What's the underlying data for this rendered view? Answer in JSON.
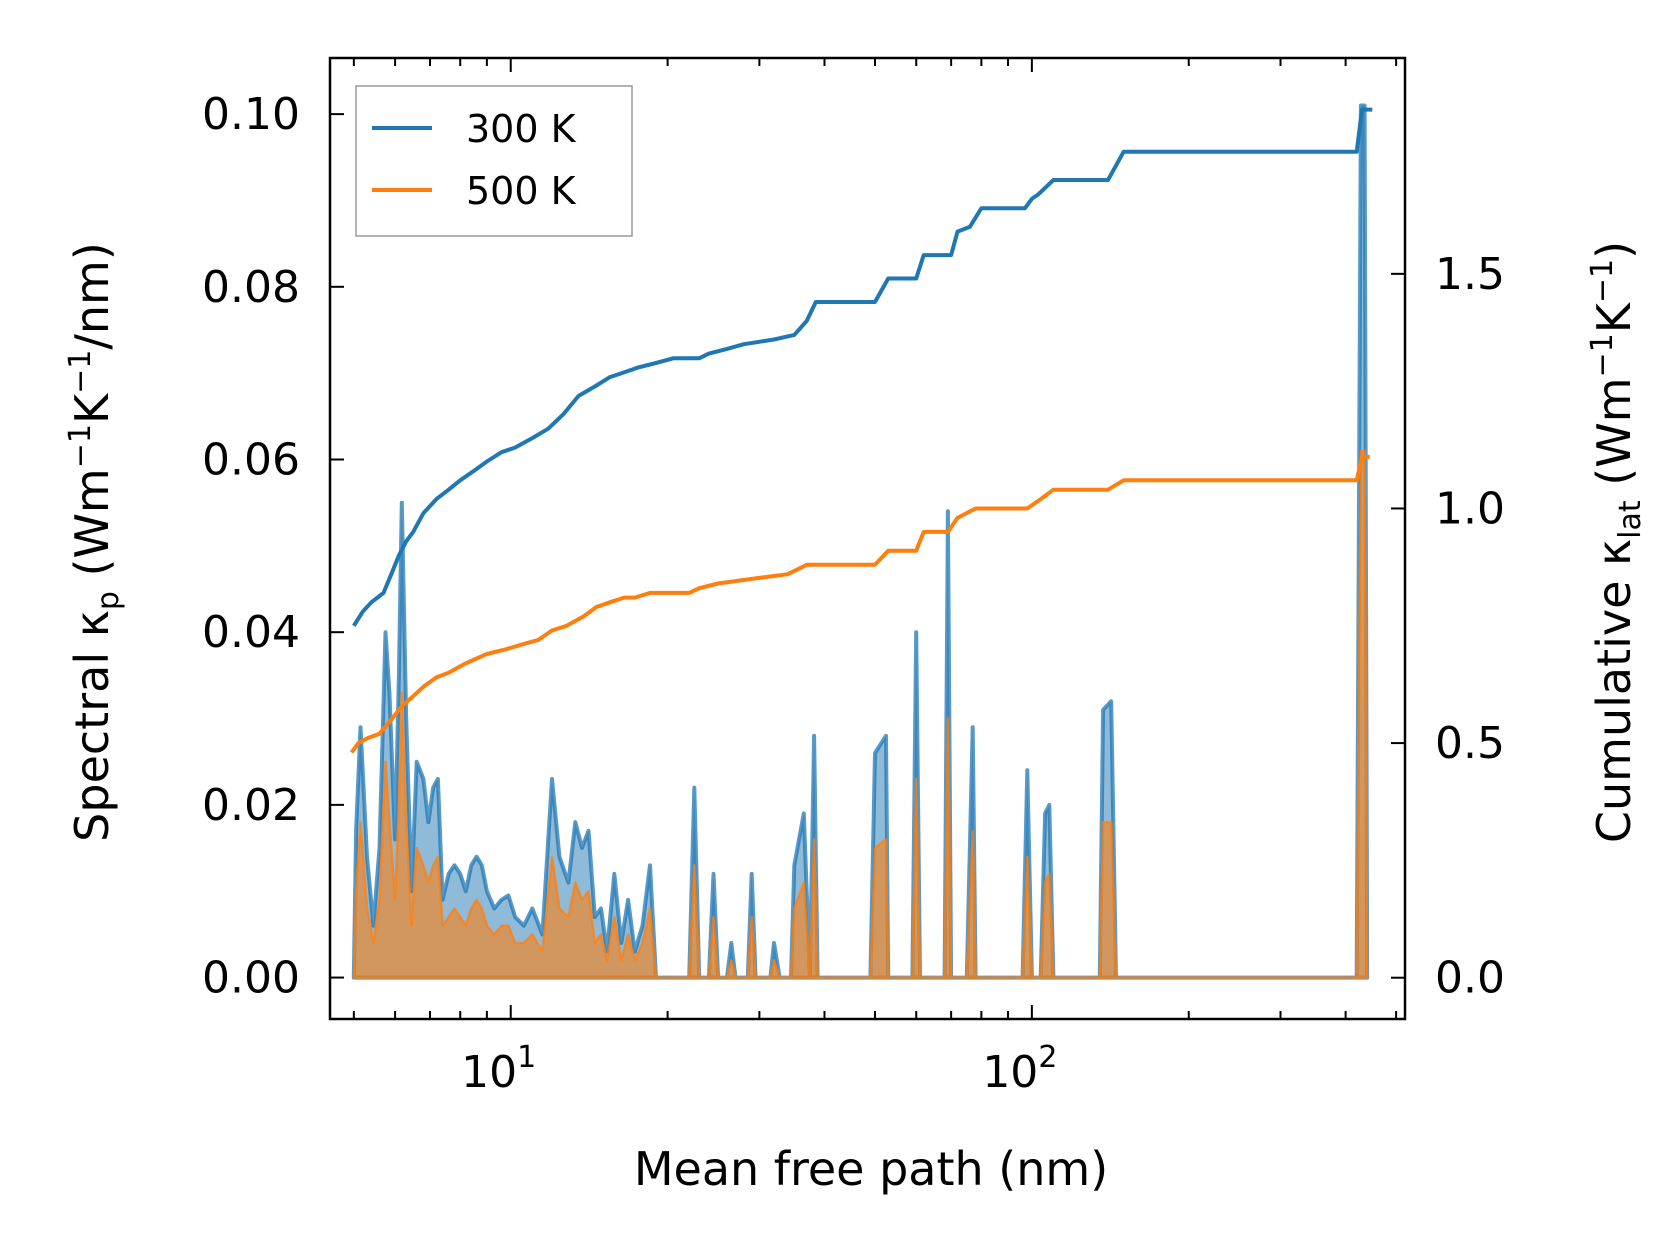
{
  "chart_data": {
    "type": "line",
    "xscale": "log",
    "xlabel": "Mean free path (nm)",
    "ylabel_left": {
      "prefix": "Spectral κ",
      "sub": "p",
      "units_a": " (Wm",
      "sup1": "−1",
      "units_b": "K",
      "sup2": "−1",
      "units_c": "/nm)"
    },
    "ylabel_right": {
      "prefix": "Cumulative κ",
      "sub": "lat",
      "units_a": " (Wm",
      "sup1": "−1",
      "units_b": "K",
      "sup2": "−1",
      "units_c": ")"
    },
    "xlim": [
      4.5,
      520
    ],
    "ylim_left": [
      -0.0048,
      0.1065
    ],
    "ylim_right": [
      -0.088,
      1.96
    ],
    "xticks": [
      {
        "value": 10,
        "base": "10",
        "exp": "1"
      },
      {
        "value": 100,
        "base": "10",
        "exp": "2"
      }
    ],
    "yticks_left": [
      {
        "value": 0.0,
        "label": "0.00"
      },
      {
        "value": 0.02,
        "label": "0.02"
      },
      {
        "value": 0.04,
        "label": "0.04"
      },
      {
        "value": 0.06,
        "label": "0.06"
      },
      {
        "value": 0.08,
        "label": "0.08"
      },
      {
        "value": 0.1,
        "label": "0.10"
      }
    ],
    "yticks_right": [
      {
        "value": 0.0,
        "label": "0.0"
      },
      {
        "value": 0.5,
        "label": "0.5"
      },
      {
        "value": 1.0,
        "label": "1.0"
      },
      {
        "value": 1.5,
        "label": "1.5"
      }
    ],
    "legend": {
      "position": "top-left",
      "entries": [
        {
          "label": "300 K",
          "color": "#1f77b4"
        },
        {
          "label": "500 K",
          "color": "#ff7f0e"
        }
      ]
    },
    "series": [
      {
        "name": "300 K",
        "color": "#1f77b4",
        "cumulative_axis": "right",
        "cumulative": [
          [
            5.0,
            0.75
          ],
          [
            5.2,
            0.78
          ],
          [
            5.4,
            0.8
          ],
          [
            5.7,
            0.82
          ],
          [
            5.9,
            0.86
          ],
          [
            6.1,
            0.9
          ],
          [
            6.3,
            0.93
          ],
          [
            6.5,
            0.95
          ],
          [
            6.8,
            0.99
          ],
          [
            7.2,
            1.02
          ],
          [
            7.6,
            1.04
          ],
          [
            8.0,
            1.06
          ],
          [
            8.5,
            1.08
          ],
          [
            9.0,
            1.1
          ],
          [
            9.6,
            1.12
          ],
          [
            10.2,
            1.13
          ],
          [
            11.0,
            1.15
          ],
          [
            11.8,
            1.17
          ],
          [
            12.6,
            1.2
          ],
          [
            13.5,
            1.24
          ],
          [
            14.5,
            1.26
          ],
          [
            15.5,
            1.28
          ],
          [
            16.5,
            1.29
          ],
          [
            17.5,
            1.3
          ],
          [
            19.0,
            1.31
          ],
          [
            20.5,
            1.32
          ],
          [
            23.0,
            1.32
          ],
          [
            24.0,
            1.33
          ],
          [
            26.0,
            1.34
          ],
          [
            28.0,
            1.35
          ],
          [
            32.0,
            1.36
          ],
          [
            35.0,
            1.37
          ],
          [
            37.0,
            1.4
          ],
          [
            38.5,
            1.44
          ],
          [
            50.0,
            1.44
          ],
          [
            53.0,
            1.49
          ],
          [
            60.0,
            1.49
          ],
          [
            62.0,
            1.54
          ],
          [
            70.0,
            1.54
          ],
          [
            72.0,
            1.59
          ],
          [
            76.0,
            1.6
          ],
          [
            80.0,
            1.64
          ],
          [
            97.0,
            1.64
          ],
          [
            100.0,
            1.66
          ],
          [
            103.0,
            1.67
          ],
          [
            110.0,
            1.7
          ],
          [
            140.0,
            1.7
          ],
          [
            150.0,
            1.76
          ],
          [
            420.0,
            1.76
          ],
          [
            430.0,
            1.85
          ],
          [
            450.0,
            1.85
          ]
        ],
        "spectral_axis": "left",
        "spectral": [
          [
            5.0,
            0.0
          ],
          [
            5.05,
            0.017
          ],
          [
            5.15,
            0.029
          ],
          [
            5.3,
            0.014
          ],
          [
            5.45,
            0.006
          ],
          [
            5.6,
            0.015
          ],
          [
            5.75,
            0.04
          ],
          [
            5.85,
            0.033
          ],
          [
            6.0,
            0.016
          ],
          [
            6.1,
            0.035
          ],
          [
            6.18,
            0.055
          ],
          [
            6.3,
            0.03
          ],
          [
            6.45,
            0.01
          ],
          [
            6.6,
            0.025
          ],
          [
            6.8,
            0.023
          ],
          [
            6.95,
            0.018
          ],
          [
            7.1,
            0.022
          ],
          [
            7.25,
            0.023
          ],
          [
            7.4,
            0.009
          ],
          [
            7.6,
            0.012
          ],
          [
            7.8,
            0.013
          ],
          [
            8.0,
            0.012
          ],
          [
            8.2,
            0.01
          ],
          [
            8.4,
            0.013
          ],
          [
            8.6,
            0.014
          ],
          [
            8.8,
            0.013
          ],
          [
            9.0,
            0.01
          ],
          [
            9.3,
            0.008
          ],
          [
            9.6,
            0.009
          ],
          [
            9.9,
            0.0095
          ],
          [
            10.2,
            0.007
          ],
          [
            10.6,
            0.006
          ],
          [
            11.0,
            0.008
          ],
          [
            11.5,
            0.005
          ],
          [
            12.0,
            0.023
          ],
          [
            12.4,
            0.014
          ],
          [
            12.9,
            0.011
          ],
          [
            13.3,
            0.018
          ],
          [
            13.7,
            0.015
          ],
          [
            14.1,
            0.017
          ],
          [
            14.5,
            0.007
          ],
          [
            14.9,
            0.008
          ],
          [
            15.3,
            0.003
          ],
          [
            15.8,
            0.012
          ],
          [
            16.3,
            0.004
          ],
          [
            16.8,
            0.009
          ],
          [
            17.3,
            0.003
          ],
          [
            17.9,
            0.006
          ],
          [
            18.5,
            0.013
          ],
          [
            19.0,
            0.0
          ],
          [
            22.0,
            0.0
          ],
          [
            22.5,
            0.022
          ],
          [
            23.0,
            0.0
          ],
          [
            24.0,
            0.0
          ],
          [
            24.5,
            0.012
          ],
          [
            25.0,
            0.0
          ],
          [
            26.0,
            0.0
          ],
          [
            26.5,
            0.004
          ],
          [
            27.0,
            0.0
          ],
          [
            28.5,
            0.0
          ],
          [
            29.0,
            0.012
          ],
          [
            29.5,
            0.0
          ],
          [
            31.5,
            0.0
          ],
          [
            32.0,
            0.004
          ],
          [
            32.8,
            0.0
          ],
          [
            34.5,
            0.0
          ],
          [
            35.0,
            0.013
          ],
          [
            36.5,
            0.019
          ],
          [
            37.5,
            0.0
          ],
          [
            38.2,
            0.028
          ],
          [
            38.8,
            0.0
          ],
          [
            49.0,
            0.0
          ],
          [
            50.0,
            0.026
          ],
          [
            52.5,
            0.028
          ],
          [
            53.0,
            0.0
          ],
          [
            59.0,
            0.0
          ],
          [
            60.0,
            0.04
          ],
          [
            61.0,
            0.0
          ],
          [
            68.0,
            0.0
          ],
          [
            69.0,
            0.054
          ],
          [
            70.0,
            0.0
          ],
          [
            75.0,
            0.0
          ],
          [
            77.0,
            0.029
          ],
          [
            78.0,
            0.0
          ],
          [
            96.0,
            0.0
          ],
          [
            98.0,
            0.024
          ],
          [
            100.0,
            0.0
          ],
          [
            104.0,
            0.0
          ],
          [
            106.0,
            0.019
          ],
          [
            108.0,
            0.02
          ],
          [
            110.0,
            0.0
          ],
          [
            135.0,
            0.0
          ],
          [
            137.0,
            0.031
          ],
          [
            142.0,
            0.032
          ],
          [
            145.0,
            0.0
          ],
          [
            420.0,
            0.0
          ],
          [
            428.0,
            0.101
          ],
          [
            435.0,
            0.101
          ],
          [
            440.0,
            0.0
          ]
        ]
      },
      {
        "name": "500 K",
        "color": "#ff7f0e",
        "cumulative_axis": "right",
        "cumulative": [
          [
            4.95,
            0.48
          ],
          [
            5.1,
            0.5
          ],
          [
            5.3,
            0.51
          ],
          [
            5.6,
            0.52
          ],
          [
            5.9,
            0.55
          ],
          [
            6.2,
            0.58
          ],
          [
            6.5,
            0.6
          ],
          [
            6.8,
            0.62
          ],
          [
            7.2,
            0.64
          ],
          [
            7.6,
            0.65
          ],
          [
            8.2,
            0.67
          ],
          [
            9.0,
            0.69
          ],
          [
            9.8,
            0.7
          ],
          [
            10.5,
            0.71
          ],
          [
            11.3,
            0.72
          ],
          [
            12.0,
            0.74
          ],
          [
            12.8,
            0.75
          ],
          [
            13.8,
            0.77
          ],
          [
            14.6,
            0.79
          ],
          [
            15.5,
            0.8
          ],
          [
            16.5,
            0.81
          ],
          [
            17.3,
            0.81
          ],
          [
            18.5,
            0.82
          ],
          [
            22.0,
            0.82
          ],
          [
            23.0,
            0.83
          ],
          [
            25.0,
            0.84
          ],
          [
            29.0,
            0.85
          ],
          [
            34.0,
            0.86
          ],
          [
            37.0,
            0.88
          ],
          [
            50.0,
            0.88
          ],
          [
            53.0,
            0.91
          ],
          [
            60.0,
            0.91
          ],
          [
            62.0,
            0.95
          ],
          [
            69.0,
            0.95
          ],
          [
            72.0,
            0.98
          ],
          [
            78.0,
            1.0
          ],
          [
            98.0,
            1.0
          ],
          [
            104.0,
            1.02
          ],
          [
            110.0,
            1.04
          ],
          [
            140.0,
            1.04
          ],
          [
            150.0,
            1.06
          ],
          [
            420.0,
            1.06
          ],
          [
            430.0,
            1.11
          ],
          [
            445.0,
            1.11
          ]
        ],
        "spectral_axis": "left",
        "spectral": [
          [
            5.0,
            0.0
          ],
          [
            5.05,
            0.01
          ],
          [
            5.15,
            0.018
          ],
          [
            5.3,
            0.008
          ],
          [
            5.45,
            0.004
          ],
          [
            5.6,
            0.009
          ],
          [
            5.75,
            0.025
          ],
          [
            5.85,
            0.018
          ],
          [
            6.0,
            0.009
          ],
          [
            6.1,
            0.02
          ],
          [
            6.18,
            0.033
          ],
          [
            6.3,
            0.018
          ],
          [
            6.45,
            0.006
          ],
          [
            6.6,
            0.015
          ],
          [
            6.8,
            0.013
          ],
          [
            6.95,
            0.011
          ],
          [
            7.1,
            0.013
          ],
          [
            7.25,
            0.014
          ],
          [
            7.4,
            0.006
          ],
          [
            7.6,
            0.007
          ],
          [
            7.8,
            0.008
          ],
          [
            8.0,
            0.007
          ],
          [
            8.2,
            0.006
          ],
          [
            8.4,
            0.008
          ],
          [
            8.6,
            0.009
          ],
          [
            8.8,
            0.008
          ],
          [
            9.0,
            0.006
          ],
          [
            9.3,
            0.005
          ],
          [
            9.6,
            0.006
          ],
          [
            9.9,
            0.006
          ],
          [
            10.2,
            0.004
          ],
          [
            10.6,
            0.004
          ],
          [
            11.0,
            0.005
          ],
          [
            11.5,
            0.003
          ],
          [
            12.0,
            0.014
          ],
          [
            12.4,
            0.008
          ],
          [
            12.9,
            0.007
          ],
          [
            13.3,
            0.011
          ],
          [
            13.7,
            0.009
          ],
          [
            14.1,
            0.01
          ],
          [
            14.5,
            0.004
          ],
          [
            14.9,
            0.005
          ],
          [
            15.3,
            0.002
          ],
          [
            15.8,
            0.007
          ],
          [
            16.3,
            0.002
          ],
          [
            16.8,
            0.005
          ],
          [
            17.3,
            0.002
          ],
          [
            17.9,
            0.004
          ],
          [
            18.5,
            0.008
          ],
          [
            19.0,
            0.0
          ],
          [
            22.0,
            0.0
          ],
          [
            22.5,
            0.013
          ],
          [
            23.0,
            0.0
          ],
          [
            24.0,
            0.0
          ],
          [
            24.5,
            0.007
          ],
          [
            25.0,
            0.0
          ],
          [
            26.0,
            0.0
          ],
          [
            26.5,
            0.002
          ],
          [
            27.0,
            0.0
          ],
          [
            28.5,
            0.0
          ],
          [
            29.0,
            0.007
          ],
          [
            29.5,
            0.0
          ],
          [
            31.5,
            0.0
          ],
          [
            32.0,
            0.002
          ],
          [
            32.8,
            0.0
          ],
          [
            34.5,
            0.0
          ],
          [
            35.0,
            0.008
          ],
          [
            36.5,
            0.011
          ],
          [
            37.5,
            0.0
          ],
          [
            38.2,
            0.016
          ],
          [
            38.8,
            0.0
          ],
          [
            49.0,
            0.0
          ],
          [
            50.0,
            0.015
          ],
          [
            52.5,
            0.016
          ],
          [
            53.0,
            0.0
          ],
          [
            59.0,
            0.0
          ],
          [
            60.0,
            0.023
          ],
          [
            61.0,
            0.0
          ],
          [
            68.0,
            0.0
          ],
          [
            69.0,
            0.03
          ],
          [
            70.0,
            0.0
          ],
          [
            75.0,
            0.0
          ],
          [
            77.0,
            0.017
          ],
          [
            78.0,
            0.0
          ],
          [
            96.0,
            0.0
          ],
          [
            98.0,
            0.014
          ],
          [
            100.0,
            0.0
          ],
          [
            104.0,
            0.0
          ],
          [
            106.0,
            0.011
          ],
          [
            108.0,
            0.012
          ],
          [
            110.0,
            0.0
          ],
          [
            135.0,
            0.0
          ],
          [
            137.0,
            0.018
          ],
          [
            142.0,
            0.018
          ],
          [
            145.0,
            0.0
          ],
          [
            420.0,
            0.0
          ],
          [
            428.0,
            0.061
          ],
          [
            435.0,
            0.061
          ],
          [
            440.0,
            0.0
          ]
        ]
      }
    ]
  }
}
